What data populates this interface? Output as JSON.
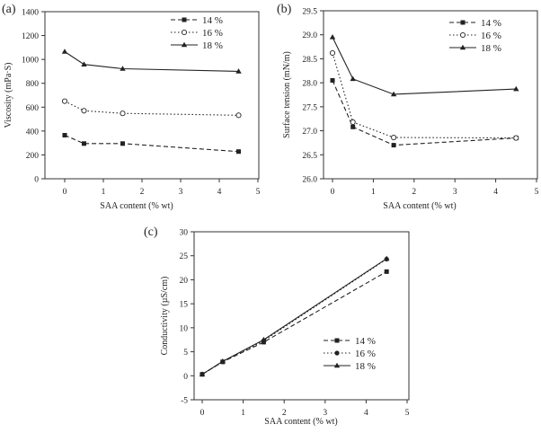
{
  "chart_data": [
    {
      "type": "line",
      "panel_label": "(a)",
      "xlabel": "SAA content (% wt)",
      "ylabel": "Viscosity (mPa·S)",
      "xlim": [
        0,
        5
      ],
      "ylim": [
        0,
        1400
      ],
      "xticks": [
        0,
        1,
        2,
        3,
        4,
        5
      ],
      "yticks": [
        0,
        200,
        400,
        600,
        800,
        1000,
        1200,
        1400
      ],
      "x": [
        0,
        0.5,
        1.5,
        4.5
      ],
      "legend_position": "top-right",
      "series": [
        {
          "name": "14 %",
          "values": [
            365,
            295,
            295,
            228
          ],
          "line": "dashed",
          "marker": "square"
        },
        {
          "name": "16 %",
          "values": [
            650,
            570,
            548,
            532
          ],
          "line": "dotted",
          "marker": "circle-open"
        },
        {
          "name": "18 %",
          "values": [
            1065,
            958,
            922,
            900
          ],
          "line": "solid",
          "marker": "triangle"
        }
      ]
    },
    {
      "type": "line",
      "panel_label": "(b)",
      "xlabel": "SAA content (% wt)",
      "ylabel": "Surface tension (mN/m)",
      "xlim": [
        0,
        5
      ],
      "ylim": [
        26.0,
        29.5
      ],
      "xticks": [
        0,
        1,
        2,
        3,
        4,
        5
      ],
      "yticks": [
        "26.0",
        "26.5",
        "27.0",
        "27.5",
        "28.0",
        "28.5",
        "29.0",
        "29.5"
      ],
      "x": [
        0,
        0.5,
        1.5,
        4.5
      ],
      "legend_position": "top-right",
      "series": [
        {
          "name": "14 %",
          "values": [
            28.05,
            27.08,
            26.7,
            26.85
          ],
          "line": "dashed",
          "marker": "square"
        },
        {
          "name": "16 %",
          "values": [
            28.62,
            27.18,
            26.86,
            26.85
          ],
          "line": "dotted",
          "marker": "circle-open"
        },
        {
          "name": "18 %",
          "values": [
            28.95,
            28.08,
            27.76,
            27.87
          ],
          "line": "solid",
          "marker": "triangle"
        }
      ]
    },
    {
      "type": "line",
      "panel_label": "(c)",
      "xlabel": "SAA content (% wt)",
      "ylabel": "Conductivity (µS/cm)",
      "xlim": [
        0,
        5
      ],
      "ylim": [
        -5,
        30
      ],
      "xticks": [
        0,
        1,
        2,
        3,
        4,
        5
      ],
      "yticks": [
        -5,
        0,
        5,
        10,
        15,
        20,
        25,
        30
      ],
      "x": [
        0,
        0.5,
        1.5,
        4.5
      ],
      "legend_position": "center-right",
      "series": [
        {
          "name": "14 %",
          "values": [
            0.3,
            2.9,
            7.0,
            21.7
          ],
          "line": "dashed",
          "marker": "square"
        },
        {
          "name": "16 %",
          "values": [
            0.3,
            2.9,
            7.3,
            24.3
          ],
          "line": "dotted",
          "marker": "circle"
        },
        {
          "name": "18 %",
          "values": [
            0.3,
            3.0,
            7.5,
            24.4
          ],
          "line": "solid",
          "marker": "triangle"
        }
      ]
    }
  ]
}
